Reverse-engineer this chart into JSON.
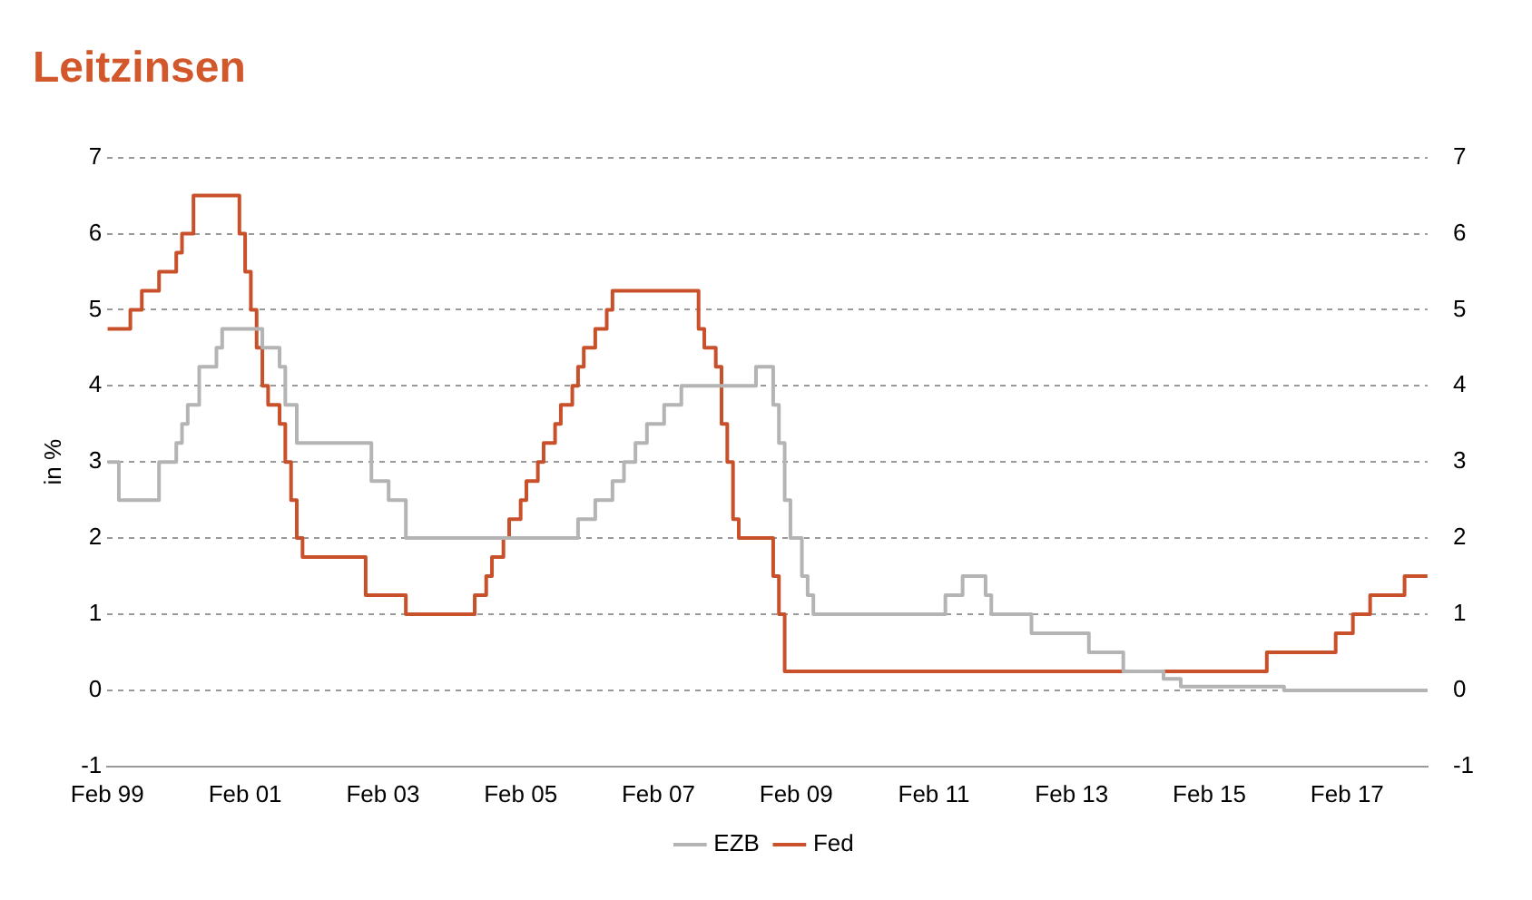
{
  "chart_data": {
    "type": "step",
    "title": "Leitzinsen",
    "ylabel": "in %",
    "xlim": [
      "1999-02",
      "2018-04"
    ],
    "xticks": [
      {
        "value": "1999-02",
        "label": "Feb 99"
      },
      {
        "value": "2001-02",
        "label": "Feb 01"
      },
      {
        "value": "2003-02",
        "label": "Feb 03"
      },
      {
        "value": "2005-02",
        "label": "Feb 05"
      },
      {
        "value": "2007-02",
        "label": "Feb 07"
      },
      {
        "value": "2009-02",
        "label": "Feb 09"
      },
      {
        "value": "2011-02",
        "label": "Feb 11"
      },
      {
        "value": "2013-02",
        "label": "Feb 13"
      },
      {
        "value": "2015-02",
        "label": "Feb 15"
      },
      {
        "value": "2017-02",
        "label": "Feb 17"
      }
    ],
    "ylim": [
      -1,
      7
    ],
    "yticks": [
      -1,
      0,
      1,
      2,
      3,
      4,
      5,
      6,
      7
    ],
    "y2lim": [
      -1,
      7
    ],
    "y2ticks": [
      -1,
      0,
      1,
      2,
      3,
      4,
      5,
      6,
      7
    ],
    "grid": "y",
    "legend": "bottom",
    "series": [
      {
        "name": "EZB",
        "color": "#b4b4b4",
        "x": [
          "1999-02",
          "1999-04",
          "1999-11",
          "2000-02",
          "2000-03",
          "2000-04",
          "2000-06",
          "2000-09",
          "2000-10",
          "2001-05",
          "2001-08",
          "2001-09",
          "2001-11",
          "2002-12",
          "2003-03",
          "2003-06",
          "2005-12",
          "2006-03",
          "2006-06",
          "2006-08",
          "2006-10",
          "2006-12",
          "2007-03",
          "2007-06",
          "2008-07",
          "2008-10",
          "2008-11",
          "2008-12",
          "2009-01",
          "2009-03",
          "2009-04",
          "2009-05",
          "2011-04",
          "2011-07",
          "2011-11",
          "2011-12",
          "2012-07",
          "2013-05",
          "2013-11",
          "2014-06",
          "2014-09",
          "2016-03",
          "2018-04"
        ],
        "values": [
          3,
          2.5,
          3,
          3.25,
          3.5,
          3.75,
          4.25,
          4.5,
          4.75,
          4.5,
          4.25,
          3.75,
          3.25,
          2.75,
          2.5,
          2,
          2.25,
          2.5,
          2.75,
          3,
          3.25,
          3.5,
          3.75,
          4,
          4.25,
          3.75,
          3.25,
          2.5,
          2,
          1.5,
          1.25,
          1,
          1.25,
          1.5,
          1.25,
          1,
          0.75,
          0.5,
          0.25,
          0.15,
          0.05,
          0,
          0
        ]
      },
      {
        "name": "Fed",
        "color": "#c8502a",
        "x": [
          "1999-02",
          "1999-06",
          "1999-08",
          "1999-11",
          "2000-02",
          "2000-03",
          "2000-05",
          "2001-01",
          "2001-02",
          "2001-03",
          "2001-04",
          "2001-05",
          "2001-06",
          "2001-08",
          "2001-09",
          "2001-10",
          "2001-11",
          "2001-12",
          "2002-11",
          "2003-06",
          "2004-06",
          "2004-08",
          "2004-09",
          "2004-11",
          "2004-12",
          "2005-02",
          "2005-03",
          "2005-05",
          "2005-06",
          "2005-08",
          "2005-09",
          "2005-11",
          "2005-12",
          "2006-01",
          "2006-03",
          "2006-05",
          "2006-06",
          "2007-09",
          "2007-10",
          "2007-12",
          "2008-01",
          "2008-02",
          "2008-03",
          "2008-04",
          "2008-10",
          "2008-11",
          "2008-12",
          "2015-12",
          "2016-12",
          "2017-03",
          "2017-06",
          "2017-12",
          "2018-04"
        ],
        "values": [
          4.75,
          5,
          5.25,
          5.5,
          5.75,
          6,
          6.5,
          6,
          5.5,
          5,
          4.5,
          4,
          3.75,
          3.5,
          3,
          2.5,
          2,
          1.75,
          1.25,
          1,
          1.25,
          1.5,
          1.75,
          2,
          2.25,
          2.5,
          2.75,
          3,
          3.25,
          3.5,
          3.75,
          4,
          4.25,
          4.5,
          4.75,
          5,
          5.25,
          4.75,
          4.5,
          4.25,
          3.5,
          3,
          2.25,
          2,
          1.5,
          1,
          0.25,
          0.5,
          0.75,
          1,
          1.25,
          1.5,
          1.5
        ]
      }
    ]
  }
}
